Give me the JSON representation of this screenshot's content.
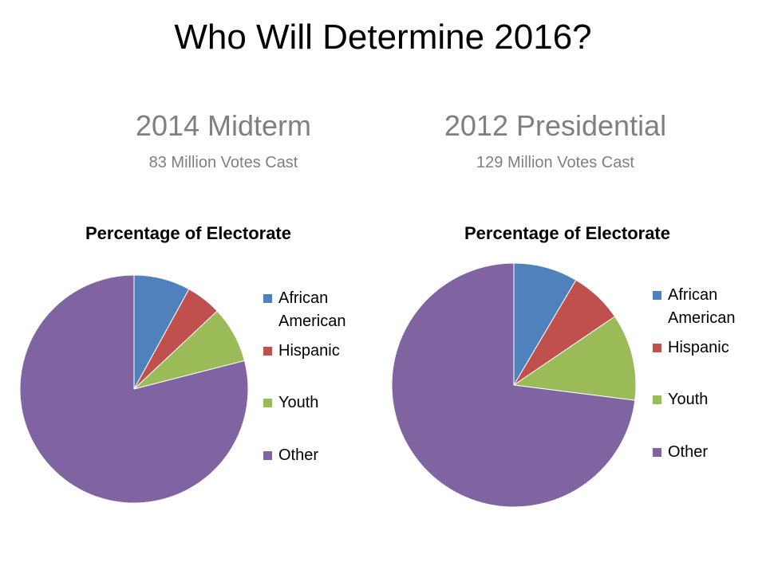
{
  "slide": {
    "title": "Who Will Determine 2016?"
  },
  "columns": [
    {
      "heading": "2014 Midterm",
      "subheading": "83 Million Votes Cast"
    },
    {
      "heading": "2012 Presidential",
      "subheading": "129 Million Votes Cast"
    }
  ],
  "chart_data": [
    {
      "type": "pie",
      "title": "Percentage of Electorate",
      "labels": [
        "African American",
        "Hispanic",
        "Youth",
        "Other"
      ],
      "values": [
        8,
        5,
        8,
        79
      ],
      "colors": [
        "#4f81bd",
        "#c0504d",
        "#9bbb59",
        "#8064a2"
      ],
      "start_angle": "12 o'clock",
      "direction": "clockwise",
      "legend_position": "right"
    },
    {
      "type": "pie",
      "title": "Percentage of Electorate",
      "labels": [
        "African American",
        "Hispanic",
        "Youth",
        "Other"
      ],
      "values": [
        8.5,
        7,
        11.5,
        73
      ],
      "colors": [
        "#4f81bd",
        "#c0504d",
        "#9bbb59",
        "#8064a2"
      ],
      "start_angle": "12 o'clock",
      "direction": "clockwise",
      "legend_position": "right"
    }
  ]
}
